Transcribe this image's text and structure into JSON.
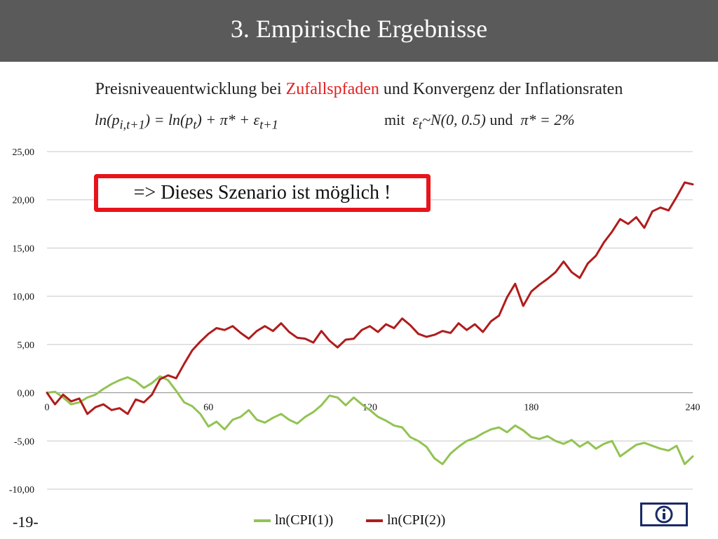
{
  "header": {
    "title": "3. Empirische Ergebnisse"
  },
  "subtitle": {
    "before": "Preisniveauentwicklung bei ",
    "highlight": "Zufallspfaden",
    "after": " und Konvergenz der Inflationsraten"
  },
  "formula": {
    "left": "ln(p",
    "left_sub": "i,t+1",
    "middle": ") =  ln(p",
    "middle_sub": "t",
    "right": ") + π* +  ε",
    "right_sub": "t+1",
    "cond_mit": "mit",
    "cond_eps": "ε",
    "cond_eps_sub": "t",
    "cond_dist": "~N(0, 0.5)",
    "cond_und": "und",
    "cond_pi": "π* = 2%"
  },
  "callout": {
    "text": "=> Dieses Szenario ist möglich !"
  },
  "footer": {
    "page_number": "-19-"
  },
  "colors": {
    "series1": "#92c353",
    "series2": "#b01c1c",
    "accent": "#e8141b",
    "header_bg": "#5a5a5a"
  },
  "icons": {
    "nav_button": "info-icon"
  },
  "chart_data": {
    "type": "line",
    "title": "",
    "xlabel": "",
    "ylabel": "",
    "x_ticks": [
      0,
      60,
      120,
      180,
      240
    ],
    "y_ticks": [
      25,
      20,
      15,
      10,
      5,
      0,
      -5,
      -10
    ],
    "y_tick_labels": [
      "25,00",
      "20,00",
      "15,00",
      "10,00",
      "5,00",
      "0,00",
      "-5,00",
      "-10,00"
    ],
    "xlim": [
      0,
      240
    ],
    "ylim": [
      -10,
      25
    ],
    "grid": true,
    "legend_position": "bottom",
    "series": [
      {
        "name": "ln(CPI(1))",
        "points": [
          [
            0,
            0
          ],
          [
            3,
            0.1
          ],
          [
            6,
            -0.5
          ],
          [
            9,
            -1.2
          ],
          [
            12,
            -1.0
          ],
          [
            15,
            -0.5
          ],
          [
            18,
            -0.2
          ],
          [
            21,
            0.4
          ],
          [
            24,
            0.9
          ],
          [
            27,
            1.3
          ],
          [
            30,
            1.6
          ],
          [
            33,
            1.2
          ],
          [
            36,
            0.5
          ],
          [
            39,
            1.0
          ],
          [
            42,
            1.7
          ],
          [
            45,
            1.3
          ],
          [
            48,
            0.2
          ],
          [
            51,
            -1.0
          ],
          [
            54,
            -1.4
          ],
          [
            57,
            -2.2
          ],
          [
            60,
            -3.5
          ],
          [
            63,
            -3.0
          ],
          [
            66,
            -3.8
          ],
          [
            69,
            -2.8
          ],
          [
            72,
            -2.5
          ],
          [
            75,
            -1.8
          ],
          [
            78,
            -2.8
          ],
          [
            81,
            -3.1
          ],
          [
            84,
            -2.6
          ],
          [
            87,
            -2.2
          ],
          [
            90,
            -2.8
          ],
          [
            93,
            -3.2
          ],
          [
            96,
            -2.5
          ],
          [
            99,
            -2.0
          ],
          [
            102,
            -1.3
          ],
          [
            105,
            -0.3
          ],
          [
            108,
            -0.5
          ],
          [
            111,
            -1.3
          ],
          [
            114,
            -0.5
          ],
          [
            117,
            -1.2
          ],
          [
            120,
            -1.8
          ],
          [
            123,
            -2.5
          ],
          [
            126,
            -2.9
          ],
          [
            129,
            -3.4
          ],
          [
            132,
            -3.6
          ],
          [
            135,
            -4.6
          ],
          [
            138,
            -5.0
          ],
          [
            141,
            -5.6
          ],
          [
            144,
            -6.8
          ],
          [
            147,
            -7.4
          ],
          [
            150,
            -6.3
          ],
          [
            153,
            -5.6
          ],
          [
            156,
            -5.0
          ],
          [
            159,
            -4.7
          ],
          [
            162,
            -4.2
          ],
          [
            165,
            -3.8
          ],
          [
            168,
            -3.6
          ],
          [
            171,
            -4.1
          ],
          [
            174,
            -3.4
          ],
          [
            177,
            -3.9
          ],
          [
            180,
            -4.6
          ],
          [
            183,
            -4.8
          ],
          [
            186,
            -4.5
          ],
          [
            189,
            -5.0
          ],
          [
            192,
            -5.3
          ],
          [
            195,
            -4.9
          ],
          [
            198,
            -5.6
          ],
          [
            201,
            -5.1
          ],
          [
            204,
            -5.8
          ],
          [
            207,
            -5.3
          ],
          [
            210,
            -5.0
          ],
          [
            213,
            -6.6
          ],
          [
            216,
            -6.0
          ],
          [
            219,
            -5.4
          ],
          [
            222,
            -5.2
          ],
          [
            225,
            -5.5
          ],
          [
            228,
            -5.8
          ],
          [
            231,
            -6.0
          ],
          [
            234,
            -5.5
          ],
          [
            237,
            -7.4
          ],
          [
            240,
            -6.6
          ]
        ]
      },
      {
        "name": "ln(CPI(2))",
        "points": [
          [
            0,
            0
          ],
          [
            3,
            -1.2
          ],
          [
            6,
            -0.2
          ],
          [
            9,
            -0.9
          ],
          [
            12,
            -0.6
          ],
          [
            15,
            -2.2
          ],
          [
            18,
            -1.5
          ],
          [
            21,
            -1.2
          ],
          [
            24,
            -1.8
          ],
          [
            27,
            -1.6
          ],
          [
            30,
            -2.2
          ],
          [
            33,
            -0.7
          ],
          [
            36,
            -1.0
          ],
          [
            39,
            -0.2
          ],
          [
            42,
            1.4
          ],
          [
            45,
            1.8
          ],
          [
            48,
            1.5
          ],
          [
            51,
            3.0
          ],
          [
            54,
            4.4
          ],
          [
            57,
            5.3
          ],
          [
            60,
            6.1
          ],
          [
            63,
            6.7
          ],
          [
            66,
            6.5
          ],
          [
            69,
            6.9
          ],
          [
            72,
            6.2
          ],
          [
            75,
            5.6
          ],
          [
            78,
            6.4
          ],
          [
            81,
            6.9
          ],
          [
            84,
            6.4
          ],
          [
            87,
            7.2
          ],
          [
            90,
            6.3
          ],
          [
            93,
            5.7
          ],
          [
            96,
            5.6
          ],
          [
            99,
            5.2
          ],
          [
            102,
            6.4
          ],
          [
            105,
            5.4
          ],
          [
            108,
            4.7
          ],
          [
            111,
            5.5
          ],
          [
            114,
            5.6
          ],
          [
            117,
            6.5
          ],
          [
            120,
            6.9
          ],
          [
            123,
            6.3
          ],
          [
            126,
            7.1
          ],
          [
            129,
            6.7
          ],
          [
            132,
            7.7
          ],
          [
            135,
            7.0
          ],
          [
            138,
            6.1
          ],
          [
            141,
            5.8
          ],
          [
            144,
            6.0
          ],
          [
            147,
            6.4
          ],
          [
            150,
            6.2
          ],
          [
            153,
            7.2
          ],
          [
            156,
            6.5
          ],
          [
            159,
            7.1
          ],
          [
            162,
            6.3
          ],
          [
            165,
            7.4
          ],
          [
            168,
            8.0
          ],
          [
            171,
            9.9
          ],
          [
            174,
            11.3
          ],
          [
            177,
            9.0
          ],
          [
            180,
            10.5
          ],
          [
            183,
            11.2
          ],
          [
            186,
            11.8
          ],
          [
            189,
            12.5
          ],
          [
            192,
            13.6
          ],
          [
            195,
            12.5
          ],
          [
            198,
            11.9
          ],
          [
            201,
            13.4
          ],
          [
            204,
            14.2
          ],
          [
            207,
            15.6
          ],
          [
            210,
            16.7
          ],
          [
            213,
            18.0
          ],
          [
            216,
            17.5
          ],
          [
            219,
            18.2
          ],
          [
            222,
            17.1
          ],
          [
            225,
            18.8
          ],
          [
            228,
            19.2
          ],
          [
            231,
            18.9
          ],
          [
            234,
            20.3
          ],
          [
            237,
            21.8
          ],
          [
            240,
            21.6
          ]
        ]
      }
    ]
  }
}
